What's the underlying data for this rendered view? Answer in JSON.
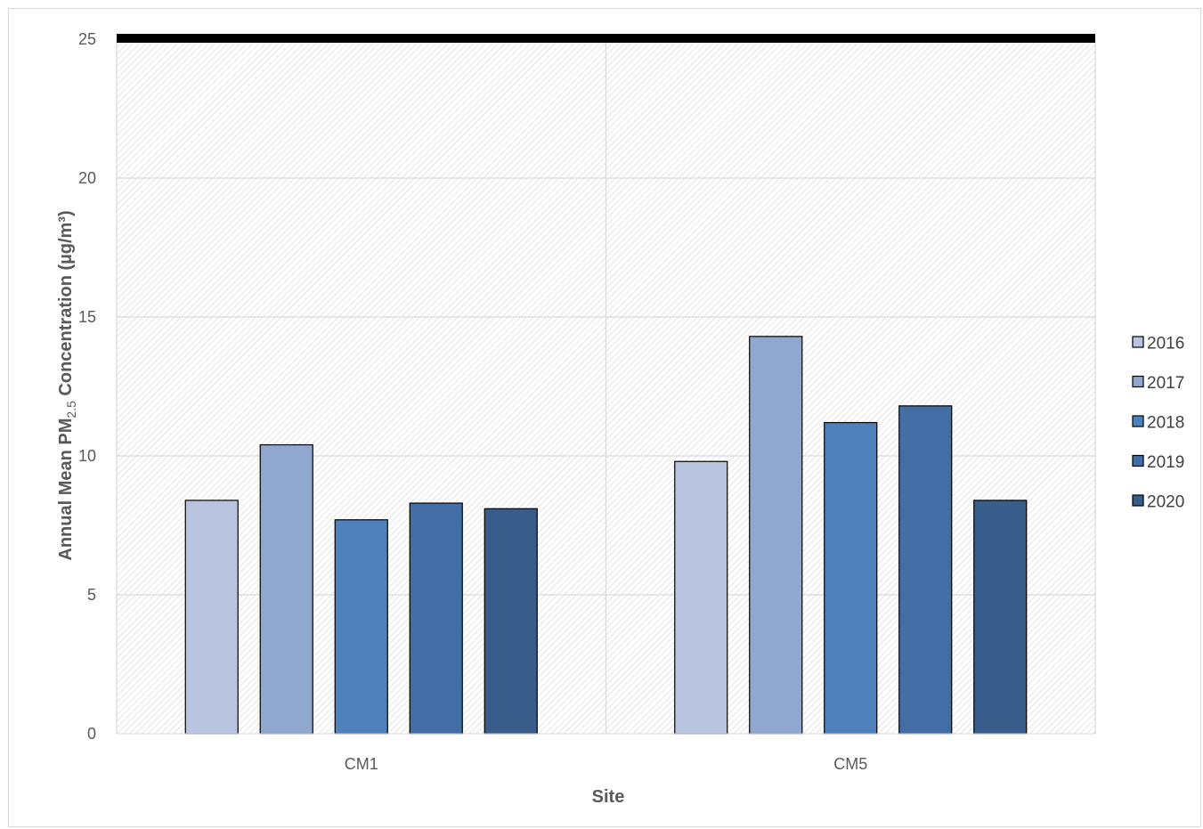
{
  "chart_data": {
    "type": "bar",
    "categories": [
      "CM1",
      "CM5"
    ],
    "series": [
      {
        "name": "2016",
        "color": "#b9c5e0",
        "values": [
          8.4,
          9.8
        ]
      },
      {
        "name": "2017",
        "color": "#90a8d0",
        "values": [
          10.4,
          14.3
        ]
      },
      {
        "name": "2018",
        "color": "#4f81bd",
        "values": [
          7.7,
          11.2
        ]
      },
      {
        "name": "2019",
        "color": "#426ea5",
        "values": [
          8.3,
          11.8
        ]
      },
      {
        "name": "2020",
        "color": "#385d8a",
        "values": [
          8.1,
          8.4
        ]
      }
    ],
    "ylim": [
      0,
      25
    ],
    "yticks": [
      "0",
      "5",
      "10",
      "15",
      "20",
      "25"
    ],
    "reference_line": {
      "value": 25,
      "color": "#000000"
    },
    "xlabel": "Site",
    "ylabel_main": "Annual Mean PM",
    "ylabel_sub": "2.5",
    "ylabel_rest": " Concentration (µg/m³)",
    "grid": true,
    "legend_position": "right"
  }
}
